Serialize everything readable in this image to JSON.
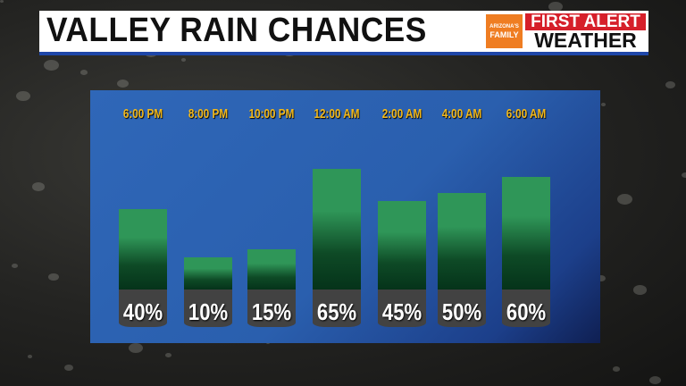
{
  "header": {
    "title": "VALLEY RAIN CHANCES"
  },
  "logo": {
    "brand": "ARIZONA'S FAMILY",
    "line1": "FIRST ALERT",
    "line2": "WEATHER"
  },
  "colors": {
    "bar": "#2f9658",
    "panel": "#2f67b8",
    "time_label": "#f2b81a",
    "logo_red": "#d61f2a",
    "logo_orange": "#ef7d22"
  },
  "chart_data": {
    "type": "bar",
    "title": "VALLEY RAIN CHANCES",
    "categories": [
      "6:00 PM",
      "8:00 PM",
      "10:00 PM",
      "12:00 AM",
      "2:00 AM",
      "4:00 AM",
      "6:00 AM"
    ],
    "values": [
      40,
      10,
      15,
      65,
      45,
      50,
      60
    ],
    "labels": [
      "40%",
      "10%",
      "15%",
      "65%",
      "45%",
      "50%",
      "60%"
    ],
    "unit": "%",
    "ylim": [
      0,
      100
    ],
    "grid": false,
    "legend": "none"
  }
}
